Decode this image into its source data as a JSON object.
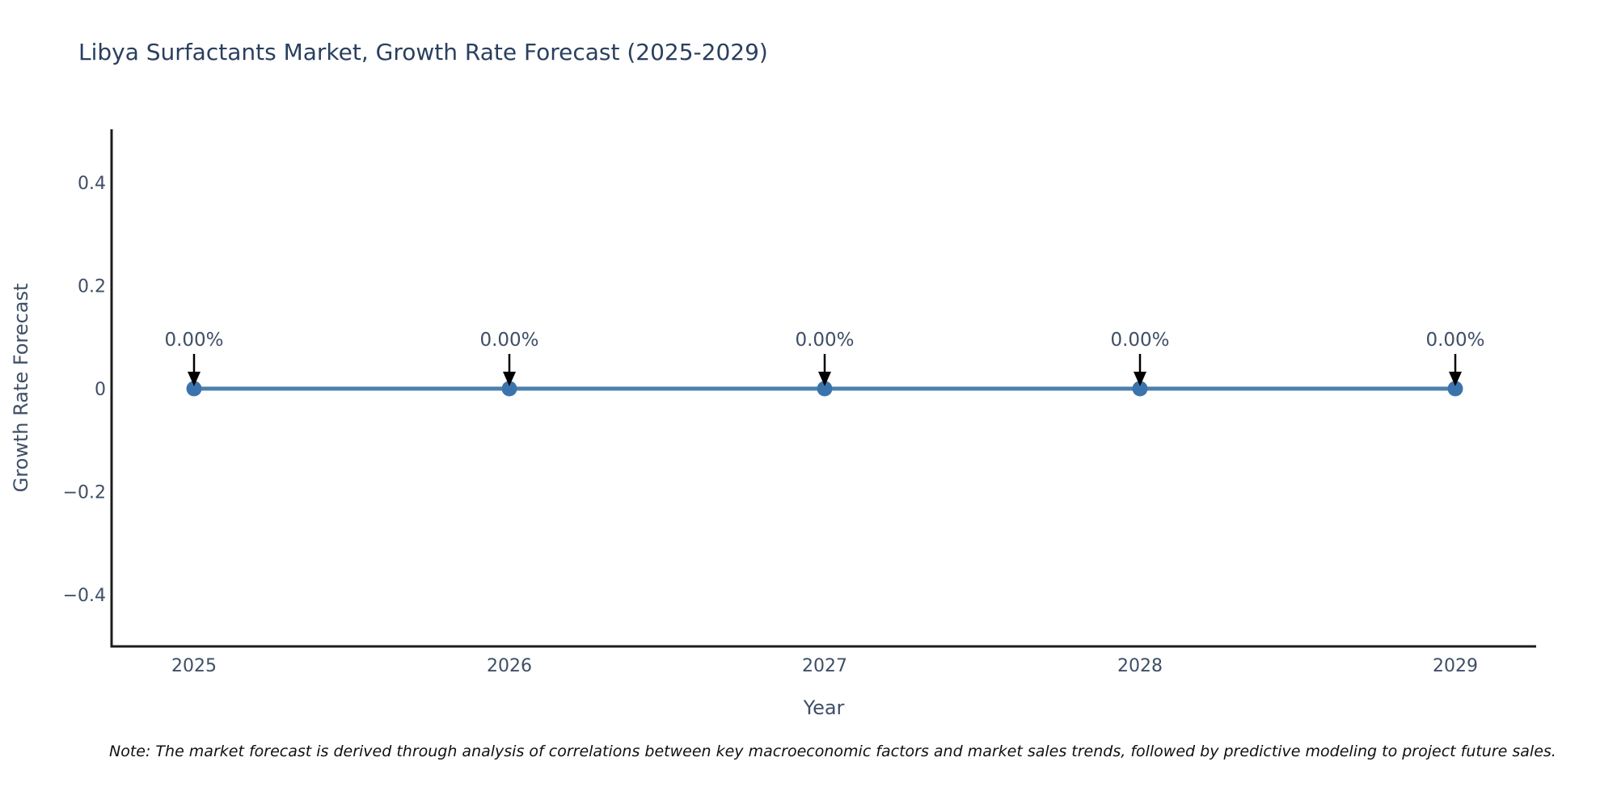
{
  "note": "Note: The market forecast is derived through analysis of correlations between key macroeconomic factors and market sales trends, followed by predictive modeling to project future sales.",
  "chart_data": {
    "type": "line",
    "title": "Libya Surfactants Market, Growth Rate Forecast (2025-2029)",
    "xlabel": "Year",
    "ylabel": "Growth Rate Forecast",
    "x": [
      2025,
      2026,
      2027,
      2028,
      2029
    ],
    "values": [
      0,
      0,
      0,
      0,
      0
    ],
    "point_labels": [
      "0.00%",
      "0.00%",
      "0.00%",
      "0.00%",
      "0.00%"
    ],
    "xtick_labels": [
      "2025",
      "2026",
      "2027",
      "2028",
      "2029"
    ],
    "yticks": [
      0.4,
      0.2,
      0,
      -0.2,
      -0.4
    ],
    "ytick_labels": [
      "0.4",
      "0.2",
      "0",
      "−0.2",
      "−0.4"
    ],
    "ylim": [
      -0.5,
      0.5
    ],
    "grid": false,
    "legend": "none",
    "annotation_style": "down-arrow",
    "colors": {
      "line": "#4d80ac",
      "marker": "#3b74ad",
      "arrow": "#000000",
      "axis": "#1c1c1c",
      "title": "#2a3f5f",
      "tick": "#3f4f66",
      "note": "#101010"
    }
  }
}
